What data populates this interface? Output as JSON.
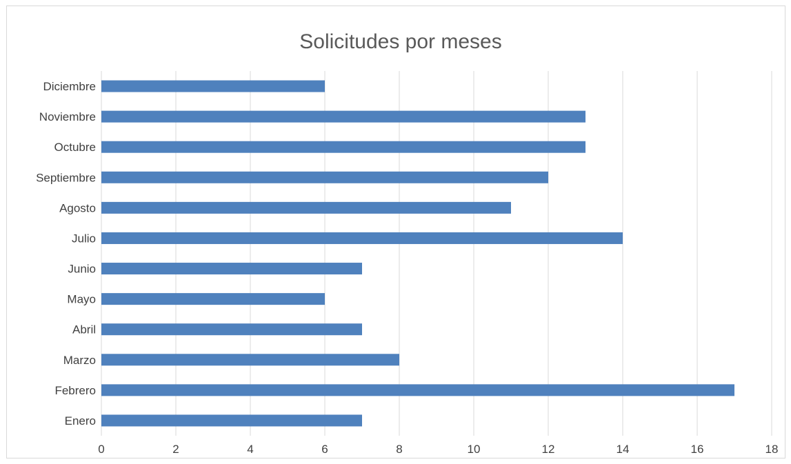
{
  "chart_data": {
    "type": "bar",
    "orientation": "horizontal",
    "title": "Solicitudes por meses",
    "xlabel": "",
    "ylabel": "",
    "categories": [
      "Enero",
      "Febrero",
      "Marzo",
      "Abril",
      "Mayo",
      "Junio",
      "Julio",
      "Agosto",
      "Septiembre",
      "Octubre",
      "Noviembre",
      "Diciembre"
    ],
    "values": [
      7,
      17,
      8,
      7,
      6,
      7,
      14,
      11,
      12,
      13,
      13,
      6
    ],
    "xlim": [
      0,
      18
    ],
    "x_ticks": [
      "0",
      "2",
      "4",
      "6",
      "8",
      "10",
      "12",
      "14",
      "16",
      "18"
    ],
    "grid": true,
    "legend": "none",
    "colors": {
      "bar": "#4f81bd",
      "grid": "#d9d9d9",
      "text": "#404040",
      "title": "#595959"
    }
  }
}
